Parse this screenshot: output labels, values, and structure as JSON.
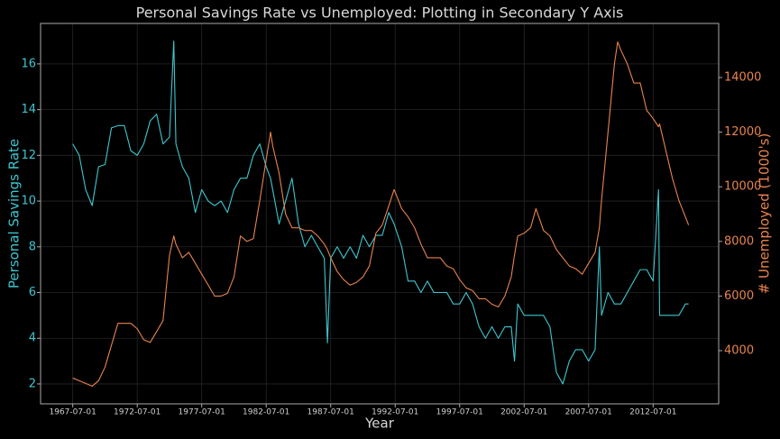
{
  "chart_data": {
    "type": "line",
    "title": "Personal Savings Rate vs Unemployed: Plotting in Secondary Y Axis",
    "xlabel": "Year",
    "ylabel": "Personal Savings Rate",
    "y2label": "# Unemployed (1000's)",
    "x": [
      "1967-07-01",
      "1968-01-01",
      "1968-07-01",
      "1969-01-01",
      "1969-07-01",
      "1970-01-01",
      "1970-07-01",
      "1971-01-01",
      "1971-07-01",
      "1972-01-01",
      "1972-07-01",
      "1973-01-01",
      "1973-07-01",
      "1974-01-01",
      "1974-07-01",
      "1975-01-01",
      "1975-05-01",
      "1975-07-01",
      "1976-01-01",
      "1976-07-01",
      "1977-01-01",
      "1977-07-01",
      "1978-01-01",
      "1978-07-01",
      "1979-01-01",
      "1979-07-01",
      "1980-01-01",
      "1980-07-01",
      "1981-01-01",
      "1981-07-01",
      "1982-01-01",
      "1982-07-01",
      "1982-11-01",
      "1983-01-01",
      "1983-07-01",
      "1984-01-01",
      "1984-07-01",
      "1985-01-01",
      "1985-07-01",
      "1986-01-01",
      "1986-07-01",
      "1987-01-01",
      "1987-04-01",
      "1987-07-01",
      "1988-01-01",
      "1988-07-01",
      "1989-01-01",
      "1989-07-01",
      "1990-01-01",
      "1990-07-01",
      "1991-01-01",
      "1991-07-01",
      "1992-01-01",
      "1992-06-01",
      "1993-01-01",
      "1993-07-01",
      "1994-01-01",
      "1994-07-01",
      "1995-01-01",
      "1995-07-01",
      "1996-01-01",
      "1996-07-01",
      "1997-01-01",
      "1997-07-01",
      "1998-01-01",
      "1998-07-01",
      "1999-01-01",
      "1999-07-01",
      "2000-01-01",
      "2000-07-01",
      "2001-01-01",
      "2001-07-01",
      "2001-10-01",
      "2002-01-01",
      "2002-07-01",
      "2003-01-01",
      "2003-06-01",
      "2004-01-01",
      "2004-07-01",
      "2005-01-01",
      "2005-07-01",
      "2006-01-01",
      "2006-07-01",
      "2007-01-01",
      "2007-07-01",
      "2008-01-01",
      "2008-05-01",
      "2008-07-01",
      "2009-01-01",
      "2009-07-01",
      "2009-10-01",
      "2010-01-01",
      "2010-07-01",
      "2011-01-01",
      "2011-07-01",
      "2012-01-01",
      "2012-07-01",
      "2012-12-01",
      "2013-01-01",
      "2013-07-01",
      "2014-01-01",
      "2014-07-01",
      "2015-01-01",
      "2015-04-01"
    ],
    "series": [
      {
        "name": "Personal Savings Rate",
        "color": "#3ec6cf",
        "axis": "y",
        "values": [
          12.5,
          12.0,
          10.5,
          9.8,
          11.5,
          11.6,
          13.2,
          13.3,
          13.3,
          12.2,
          12.0,
          12.5,
          13.5,
          13.8,
          12.5,
          12.8,
          17.0,
          12.5,
          11.5,
          11.0,
          9.5,
          10.5,
          10.0,
          9.8,
          10.0,
          9.5,
          10.5,
          11.0,
          11.0,
          12.0,
          12.5,
          11.5,
          11.0,
          10.5,
          9.0,
          10.0,
          11.0,
          9.0,
          8.0,
          8.5,
          8.0,
          7.5,
          3.8,
          7.5,
          8.0,
          7.5,
          8.0,
          7.5,
          8.5,
          8.0,
          8.5,
          8.5,
          9.5,
          9.0,
          8.0,
          6.5,
          6.5,
          6.0,
          6.5,
          6.0,
          6.0,
          6.0,
          5.5,
          5.5,
          6.0,
          5.5,
          4.5,
          4.0,
          4.5,
          4.0,
          4.5,
          4.5,
          3.0,
          5.5,
          5.0,
          5.0,
          5.0,
          5.0,
          4.5,
          2.5,
          2.0,
          3.0,
          3.5,
          3.5,
          3.0,
          3.5,
          8.0,
          5.0,
          6.0,
          5.5,
          5.5,
          5.5,
          6.0,
          6.5,
          7.0,
          7.0,
          6.5,
          10.5,
          5.0,
          5.0,
          5.0,
          5.0,
          5.5,
          5.5
        ]
      },
      {
        "name": "# Unemployed (1000's)",
        "color": "#e8834d",
        "axis": "y2",
        "values": [
          3000,
          2900,
          2800,
          2700,
          2900,
          3400,
          4200,
          5000,
          5000,
          5000,
          4800,
          4400,
          4300,
          4700,
          5100,
          7500,
          8200,
          7900,
          7400,
          7600,
          7200,
          6800,
          6400,
          6000,
          6000,
          6100,
          6700,
          8200,
          8000,
          8100,
          9500,
          11000,
          12000,
          11500,
          10500,
          9000,
          8500,
          8500,
          8400,
          8400,
          8200,
          7900,
          7700,
          7400,
          6900,
          6600,
          6400,
          6500,
          6700,
          7100,
          8300,
          8600,
          9300,
          9900,
          9200,
          8900,
          8500,
          7900,
          7400,
          7400,
          7400,
          7100,
          7000,
          6600,
          6300,
          6200,
          5900,
          5900,
          5700,
          5600,
          6000,
          6700,
          7500,
          8200,
          8300,
          8500,
          9200,
          8400,
          8200,
          7700,
          7400,
          7100,
          7000,
          6800,
          7200,
          7600,
          8500,
          9500,
          12000,
          14500,
          15300,
          15000,
          14500,
          13800,
          13800,
          12800,
          12500,
          12200,
          12300,
          11300,
          10300,
          9500,
          8900,
          8600
        ]
      }
    ],
    "xlim": [
      "1965-01-01",
      "2017-08-01"
    ],
    "xticks": [
      "1967-07-01",
      "1972-07-01",
      "1977-07-01",
      "1982-07-01",
      "1987-07-01",
      "1992-07-01",
      "1997-07-01",
      "2002-07-01",
      "2007-07-01",
      "2012-07-01"
    ],
    "ylim": [
      1.13,
      17.77
    ],
    "yticks": [
      2,
      4,
      6,
      8,
      10,
      12,
      14,
      16
    ],
    "y2lim": [
      2053,
      15980
    ],
    "y2ticks": [
      4000,
      6000,
      8000,
      10000,
      12000,
      14000
    ],
    "grid": true
  }
}
